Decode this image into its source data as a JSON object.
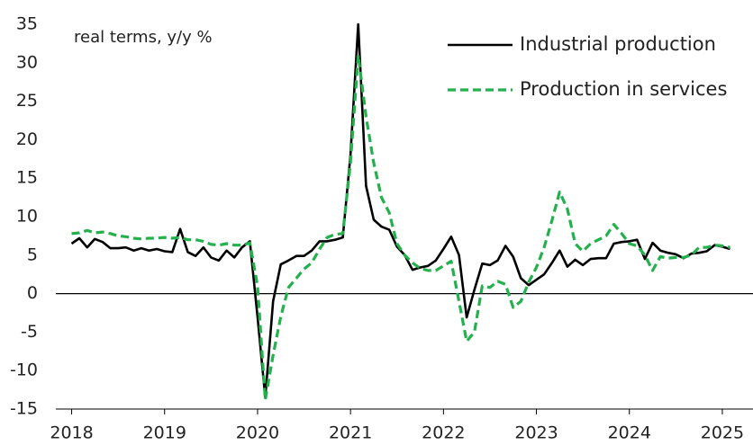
{
  "chart_data": {
    "type": "line",
    "annotation": "real terms, y/y %",
    "legend": "upper right",
    "x": [
      2018,
      2018.083,
      2018.167,
      2018.25,
      2018.333,
      2018.417,
      2018.5,
      2018.583,
      2018.667,
      2018.75,
      2018.833,
      2018.917,
      2019,
      2019.083,
      2019.167,
      2019.25,
      2019.333,
      2019.417,
      2019.5,
      2019.583,
      2019.667,
      2019.75,
      2019.833,
      2019.917,
      2020,
      2020.083,
      2020.167,
      2020.25,
      2020.333,
      2020.417,
      2020.5,
      2020.583,
      2020.667,
      2020.75,
      2020.833,
      2020.917,
      2021,
      2021.083,
      2021.167,
      2021.25,
      2021.333,
      2021.417,
      2021.5,
      2021.583,
      2021.667,
      2021.75,
      2021.833,
      2021.917,
      2022,
      2022.083,
      2022.167,
      2022.25,
      2022.333,
      2022.417,
      2022.5,
      2022.583,
      2022.667,
      2022.75,
      2022.833,
      2022.917,
      2023,
      2023.083,
      2023.167,
      2023.25,
      2023.333,
      2023.417,
      2023.5,
      2023.583,
      2023.667,
      2023.75,
      2023.833,
      2023.917,
      2024,
      2024.083,
      2024.167,
      2024.25,
      2024.333,
      2024.417,
      2024.5,
      2024.583,
      2024.667,
      2024.75,
      2024.833,
      2024.917,
      2025,
      2025.083
    ],
    "series": [
      {
        "name": "Industrial production",
        "color": "#000000",
        "dash": false,
        "values": [
          6.5,
          7.2,
          6.0,
          7.1,
          6.7,
          5.9,
          5.9,
          6.0,
          5.6,
          5.9,
          5.6,
          5.8,
          5.5,
          5.4,
          8.4,
          5.4,
          4.9,
          6.0,
          4.7,
          4.3,
          5.6,
          4.7,
          6.0,
          6.8,
          -3,
          -13.5,
          -1,
          3.8,
          4.3,
          4.9,
          4.9,
          5.6,
          6.8,
          6.8,
          7.0,
          7.3,
          18,
          35,
          14,
          9.6,
          8.7,
          8.3,
          6.1,
          5.0,
          3.1,
          3.4,
          3.6,
          4.3,
          5.8,
          7.4,
          5.0,
          -3.1,
          0.5,
          3.9,
          3.7,
          4.3,
          6.2,
          4.8,
          2.0,
          1.1,
          1.8,
          2.5,
          4.0,
          5.6,
          3.5,
          4.4,
          3.7,
          4.5,
          4.6,
          4.6,
          6.5,
          6.7,
          6.8,
          7.0,
          4.5,
          6.6,
          5.6,
          5.3,
          5.1,
          4.6,
          5.2,
          5.3,
          5.5,
          6.3,
          6.1,
          5.8
        ]
      },
      {
        "name": "Production in services",
        "color": "#22b14c",
        "dash": true,
        "values": [
          7.8,
          7.9,
          8.2,
          7.9,
          8.0,
          7.8,
          7.5,
          7.4,
          7.2,
          7.1,
          7.2,
          7.2,
          7.3,
          7.2,
          7.3,
          7.0,
          7.0,
          6.8,
          6.4,
          6.3,
          6.5,
          6.3,
          6.3,
          6.6,
          1.0,
          -13.8,
          -8,
          -3,
          0.8,
          2.0,
          3.2,
          4.0,
          5.8,
          7.3,
          7.7,
          7.8,
          17,
          31,
          23,
          17,
          12.5,
          10.5,
          6.5,
          5.0,
          4.0,
          3.3,
          3.0,
          3.0,
          3.6,
          4.2,
          -1,
          -6.2,
          -5.0,
          1.0,
          0.8,
          1.6,
          1.2,
          -1.8,
          -1.0,
          1.5,
          3.4,
          6.0,
          9.5,
          13.2,
          11.0,
          6.5,
          5.5,
          6.5,
          7.0,
          7.5,
          9.0,
          7.8,
          6.5,
          6.2,
          5.0,
          3.0,
          4.8,
          4.6,
          4.7,
          4.7,
          5.0,
          6.0,
          6.0,
          6.3,
          6.2,
          6.0
        ]
      }
    ],
    "xlim": [
      2017.83,
      2025.33
    ],
    "xticks": [
      2018,
      2019,
      2020,
      2021,
      2022,
      2023,
      2024,
      2025
    ],
    "ylim": [
      -15,
      35
    ],
    "yticks": [
      -15,
      -10,
      -5,
      0,
      5,
      10,
      15,
      20,
      25,
      30,
      35
    ]
  }
}
